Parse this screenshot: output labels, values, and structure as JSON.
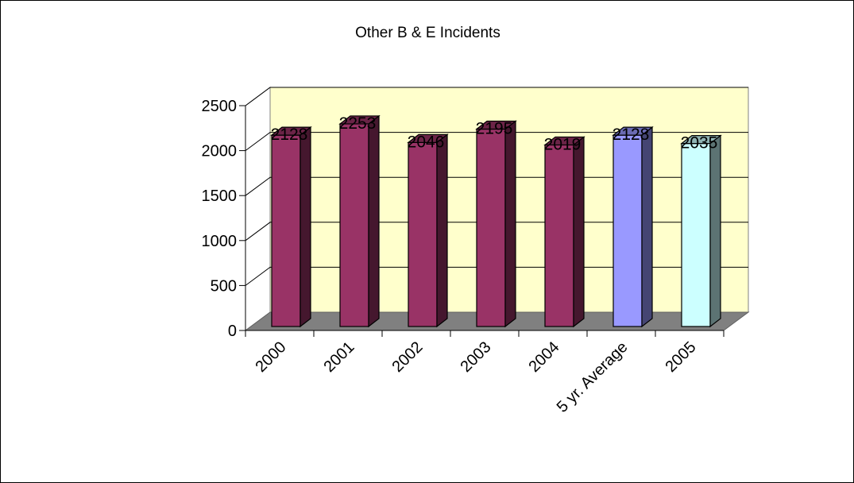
{
  "chart_data": {
    "type": "bar",
    "title": "Other B & E Incidents",
    "categories": [
      "2000",
      "2001",
      "2002",
      "2003",
      "2004",
      "5 yr. Average",
      "2005"
    ],
    "values": [
      2128,
      2253,
      2046,
      2195,
      2019,
      2128,
      2035
    ],
    "data_labels": [
      "2128",
      "2253",
      "2046",
      "2195",
      "2019",
      "2128",
      "2035"
    ],
    "bar_colors": [
      "#993366",
      "#993366",
      "#993366",
      "#993366",
      "#993366",
      "#9999ff",
      "#ccffff"
    ],
    "ylim": [
      0,
      2500
    ],
    "yticks": [
      0,
      500,
      1000,
      1500,
      2000,
      2500
    ],
    "ytick_labels": [
      "0",
      "500",
      "1000",
      "1500",
      "2000",
      "2500"
    ],
    "xlabel": "",
    "ylabel": "",
    "grid": true,
    "legend": "none",
    "wall_color": "#ffffcc",
    "floor_color": "#808080"
  }
}
